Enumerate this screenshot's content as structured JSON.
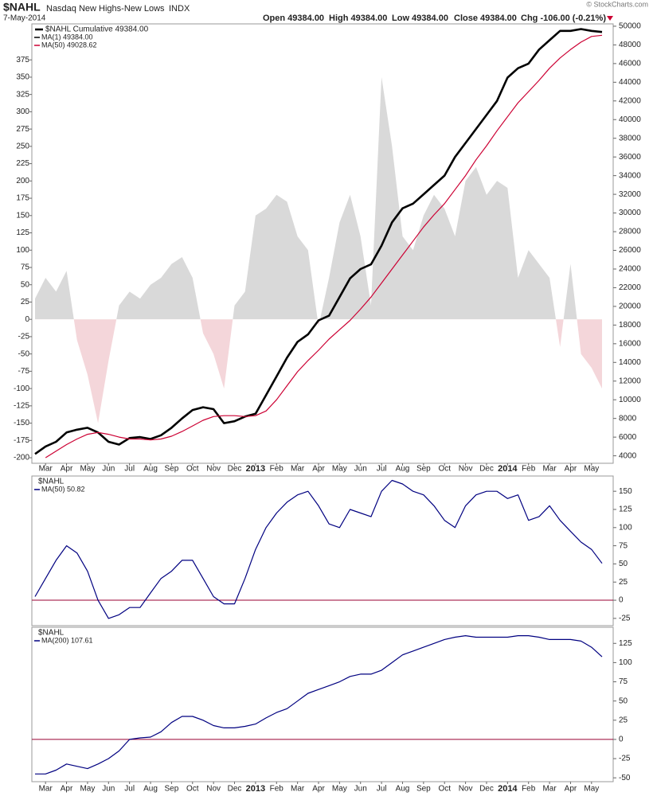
{
  "header": {
    "symbol": "$NAHL",
    "name": "Nasdaq New Highs-New Lows",
    "exchange": "INDX",
    "date": "7-May-2014",
    "open": "Open 49384.00",
    "high": "High 49384.00",
    "low": "Low 49384.00",
    "close": "Close 49384.00",
    "change": "Chg -106.00 (-0.21%)",
    "copyright": "© StockCharts.com"
  },
  "chart_data": [
    {
      "type": "line",
      "legend_title": "$NAHL Cumulative 49384.00",
      "categories": [
        null,
        "Mar",
        null,
        "Apr",
        null,
        "May",
        null,
        "Jun",
        null,
        "Jul",
        null,
        "Aug",
        null,
        "Sep",
        null,
        "Oct",
        null,
        "Nov",
        null,
        "Dec",
        null,
        "2013",
        null,
        "Feb",
        null,
        "Mar",
        null,
        "Apr",
        null,
        "May",
        null,
        "Jun",
        null,
        "Jul",
        null,
        "Aug",
        null,
        "Sep",
        null,
        "Oct",
        null,
        "Nov",
        null,
        "Dec",
        null,
        "2014",
        null,
        "Feb",
        null,
        "Mar",
        null,
        "Apr",
        null,
        "May",
        null
      ],
      "area": {
        "color": "#d9d9d9",
        "negative_color": "#f4d6da",
        "values": [
          30,
          60,
          40,
          70,
          -30,
          -80,
          -150,
          -60,
          20,
          40,
          30,
          50,
          60,
          80,
          90,
          60,
          -20,
          -50,
          -100,
          20,
          40,
          150,
          160,
          180,
          170,
          120,
          100,
          -10,
          60,
          140,
          180,
          120,
          20,
          350,
          250,
          120,
          100,
          150,
          180,
          160,
          120,
          200,
          220,
          180,
          200,
          190,
          60,
          100,
          80,
          60,
          -40,
          80,
          -50,
          -70,
          -100
        ]
      },
      "series": [
        {
          "name": "MA(1) 49384.00",
          "color": "#000000",
          "axis": "y2",
          "values": [
            4200,
            5000,
            5500,
            6500,
            6800,
            7000,
            6500,
            5500,
            5200,
            5900,
            6000,
            5800,
            6200,
            7000,
            8000,
            8900,
            9200,
            9000,
            7500,
            7700,
            8200,
            8500,
            10500,
            12500,
            14500,
            16200,
            17000,
            18500,
            19000,
            21000,
            23000,
            24000,
            24500,
            26500,
            29000,
            30500,
            31000,
            32000,
            33000,
            34000,
            36000,
            37500,
            39000,
            40500,
            42000,
            44500,
            45500,
            46000,
            47500,
            48500,
            49500,
            49500,
            49700,
            49500,
            49384
          ]
        },
        {
          "name": "MA(50) 49028.62",
          "color": "#cc0033",
          "axis": "y2",
          "values": [
            null,
            3800,
            4500,
            5200,
            5800,
            6300,
            6500,
            6300,
            6000,
            5800,
            5800,
            5700,
            5800,
            6100,
            6600,
            7200,
            7800,
            8200,
            8300,
            8300,
            8200,
            8300,
            8800,
            10000,
            11500,
            13000,
            14200,
            15300,
            16500,
            17500,
            18500,
            19700,
            21000,
            22500,
            24000,
            25500,
            27000,
            28500,
            29800,
            31000,
            32500,
            34000,
            35700,
            37200,
            38800,
            40300,
            41800,
            43000,
            44200,
            45500,
            46600,
            47500,
            48300,
            48900,
            49028.62
          ]
        }
      ],
      "ylim": [
        -208,
        427
      ],
      "yticks": [
        -200,
        -175,
        -150,
        -125,
        -100,
        -75,
        -50,
        -25,
        0,
        25,
        50,
        75,
        100,
        125,
        150,
        175,
        200,
        225,
        250,
        275,
        300,
        325,
        350,
        375
      ],
      "y2lim": [
        3200,
        50250
      ],
      "y2ticks": [
        4000,
        6000,
        8000,
        10000,
        12000,
        14000,
        16000,
        18000,
        20000,
        22000,
        24000,
        26000,
        28000,
        30000,
        32000,
        34000,
        36000,
        38000,
        40000,
        42000,
        44000,
        46000,
        48000,
        50000
      ]
    },
    {
      "type": "line",
      "legend_title": "$NAHL",
      "y_axis": "right",
      "zero_line_color": "#990033",
      "series": [
        {
          "name": "MA(50) 50.82",
          "color": "#000080",
          "values": [
            5,
            30,
            55,
            75,
            65,
            40,
            0,
            -25,
            -20,
            -10,
            -10,
            10,
            30,
            40,
            55,
            55,
            30,
            5,
            -5,
            -5,
            30,
            70,
            100,
            120,
            135,
            145,
            150,
            130,
            105,
            100,
            125,
            120,
            115,
            150,
            165,
            160,
            150,
            145,
            130,
            110,
            100,
            130,
            145,
            150,
            150,
            140,
            145,
            110,
            115,
            130,
            110,
            95,
            80,
            70,
            50.82
          ]
        }
      ],
      "ylim": [
        -35,
        171
      ],
      "yticks": [
        -25,
        0,
        25,
        50,
        75,
        100,
        125,
        150
      ]
    },
    {
      "type": "line",
      "legend_title": "$NAHL",
      "y_axis": "right",
      "zero_line_color": "#990033",
      "categories": [
        null,
        "Mar",
        null,
        "Apr",
        null,
        "May",
        null,
        "Jun",
        null,
        "Jul",
        null,
        "Aug",
        null,
        "Sep",
        null,
        "Oct",
        null,
        "Nov",
        null,
        "Dec",
        null,
        "2013",
        null,
        "Feb",
        null,
        "Mar",
        null,
        "Apr",
        null,
        "May",
        null,
        "Jun",
        null,
        "Jul",
        null,
        "Aug",
        null,
        "Sep",
        null,
        "Oct",
        null,
        "Nov",
        null,
        "Dec",
        null,
        "2014",
        null,
        "Feb",
        null,
        "Mar",
        null,
        "Apr",
        null,
        "May",
        null
      ],
      "series": [
        {
          "name": "MA(200) 107.61",
          "color": "#000080",
          "values": [
            -45,
            -45,
            -40,
            -32,
            -35,
            -38,
            -32,
            -25,
            -15,
            0,
            2,
            3,
            10,
            22,
            30,
            30,
            25,
            18,
            15,
            15,
            17,
            20,
            28,
            35,
            40,
            50,
            60,
            65,
            70,
            75,
            82,
            85,
            85,
            90,
            100,
            110,
            115,
            120,
            125,
            130,
            133,
            135,
            133,
            133,
            133,
            133,
            135,
            135,
            133,
            130,
            130,
            130,
            128,
            120,
            107.61
          ]
        }
      ],
      "ylim": [
        -55,
        146
      ],
      "yticks": [
        -50,
        -25,
        0,
        25,
        50,
        75,
        100,
        125
      ]
    }
  ]
}
